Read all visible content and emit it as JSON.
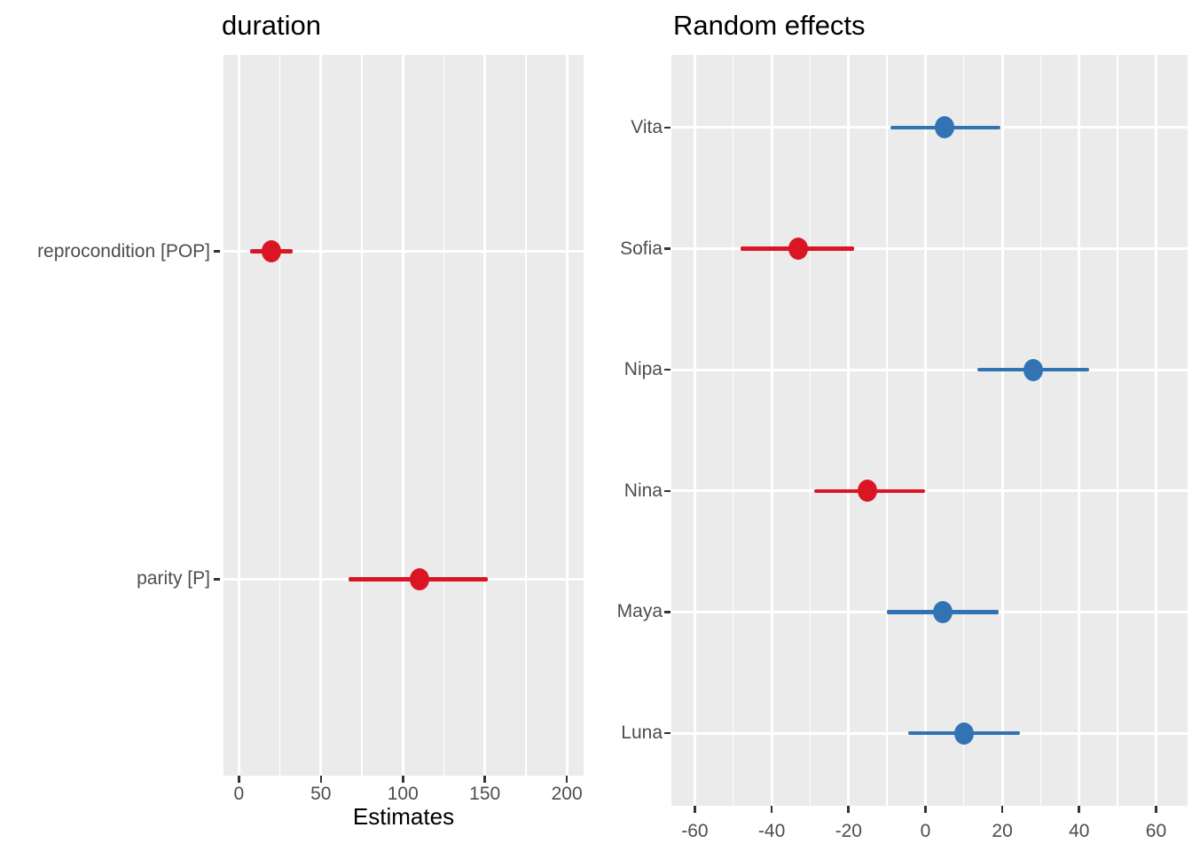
{
  "figure": {
    "background": "#ffffff",
    "description": "Two-panel forest plot (dot-and-whisker) of model estimates and random effects"
  },
  "colors": {
    "red": "#DA1625",
    "blue": "#3273B4",
    "panel_background": "#EBEBEB",
    "gridline": "#FFFFFF",
    "axis_text": "#4D4D4D",
    "title_text": "#000000",
    "tick_mark": "#333333"
  },
  "chart_data": [
    {
      "id": "duration",
      "type": "scatter",
      "subtype": "forest-dot-whisker",
      "title": "duration",
      "xlabel": "Estimates",
      "ylabel": "",
      "legend": "none",
      "grid": "on",
      "x_ticks": [
        0,
        50,
        100,
        150,
        200
      ],
      "x_minor_ticks": [
        25,
        75,
        125,
        175
      ],
      "xlim": [
        -9.4,
        210.2
      ],
      "categories": [
        "reprocondition [POP]",
        "parity [P]"
      ],
      "points": [
        {
          "label": "reprocondition [POP]",
          "estimate": 20,
          "ci_low": 7,
          "ci_high": 33,
          "color": "red"
        },
        {
          "label": "parity [P]",
          "estimate": 110,
          "ci_low": 67,
          "ci_high": 152,
          "color": "red"
        }
      ]
    },
    {
      "id": "random-effects",
      "type": "scatter",
      "subtype": "forest-dot-whisker",
      "title": "Random effects",
      "xlabel": "",
      "ylabel": "",
      "legend": "none",
      "grid": "on",
      "x_ticks": [
        -60,
        -40,
        -20,
        0,
        20,
        40,
        60
      ],
      "x_minor_ticks": [
        -50,
        -30,
        -10,
        10,
        30,
        50
      ],
      "xlim": [
        -66.1,
        68.2
      ],
      "categories": [
        "Vita",
        "Sofia",
        "Nipa",
        "Nina",
        "Maya",
        "Luna"
      ],
      "points": [
        {
          "label": "Vita",
          "estimate": 5,
          "ci_low": -9,
          "ci_high": 19.5,
          "color": "blue"
        },
        {
          "label": "Sofia",
          "estimate": -33,
          "ci_low": -48,
          "ci_high": -18.5,
          "color": "red"
        },
        {
          "label": "Nipa",
          "estimate": 28,
          "ci_low": 13.5,
          "ci_high": 42.5,
          "color": "blue"
        },
        {
          "label": "Nina",
          "estimate": -15,
          "ci_low": -29,
          "ci_high": 0,
          "color": "red"
        },
        {
          "label": "Maya",
          "estimate": 4.5,
          "ci_low": -10,
          "ci_high": 19,
          "color": "blue"
        },
        {
          "label": "Luna",
          "estimate": 10,
          "ci_low": -4.5,
          "ci_high": 24.5,
          "color": "blue"
        }
      ]
    }
  ]
}
